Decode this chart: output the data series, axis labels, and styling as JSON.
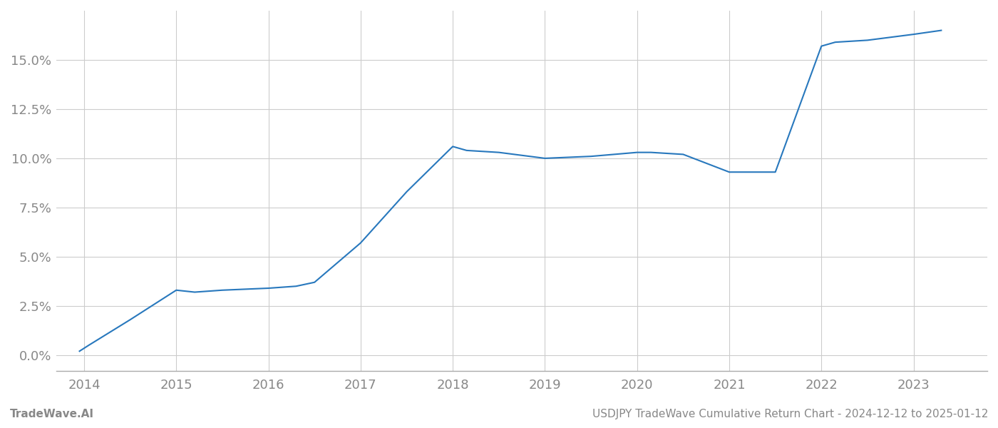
{
  "x_years": [
    2013.95,
    2014.05,
    2014.5,
    2015.0,
    2015.2,
    2015.5,
    2016.0,
    2016.3,
    2016.5,
    2017.0,
    2017.5,
    2018.0,
    2018.15,
    2018.5,
    2019.0,
    2019.5,
    2020.0,
    2020.15,
    2020.5,
    2021.0,
    2021.5,
    2022.0,
    2022.15,
    2022.5,
    2023.0,
    2023.3
  ],
  "y_values": [
    0.002,
    0.005,
    0.018,
    0.033,
    0.032,
    0.033,
    0.034,
    0.035,
    0.037,
    0.057,
    0.083,
    0.106,
    0.104,
    0.103,
    0.1,
    0.101,
    0.103,
    0.103,
    0.102,
    0.093,
    0.093,
    0.157,
    0.159,
    0.16,
    0.163,
    0.165
  ],
  "line_color": "#2878bd",
  "line_width": 1.5,
  "background_color": "#ffffff",
  "grid_color": "#cccccc",
  "tick_label_color": "#888888",
  "x_ticks": [
    2014,
    2015,
    2016,
    2017,
    2018,
    2019,
    2020,
    2021,
    2022,
    2023
  ],
  "y_ticks": [
    0.0,
    0.025,
    0.05,
    0.075,
    0.1,
    0.125,
    0.15
  ],
  "y_tick_labels": [
    "0.0%",
    "2.5%",
    "5.0%",
    "7.5%",
    "10.0%",
    "12.5%",
    "15.0%"
  ],
  "xlim": [
    2013.7,
    2023.8
  ],
  "ylim": [
    -0.008,
    0.175
  ],
  "footer_left": "TradeWave.AI",
  "footer_right": "USDJPY TradeWave Cumulative Return Chart - 2024-12-12 to 2025-01-12",
  "footer_color": "#888888",
  "footer_fontsize": 11
}
